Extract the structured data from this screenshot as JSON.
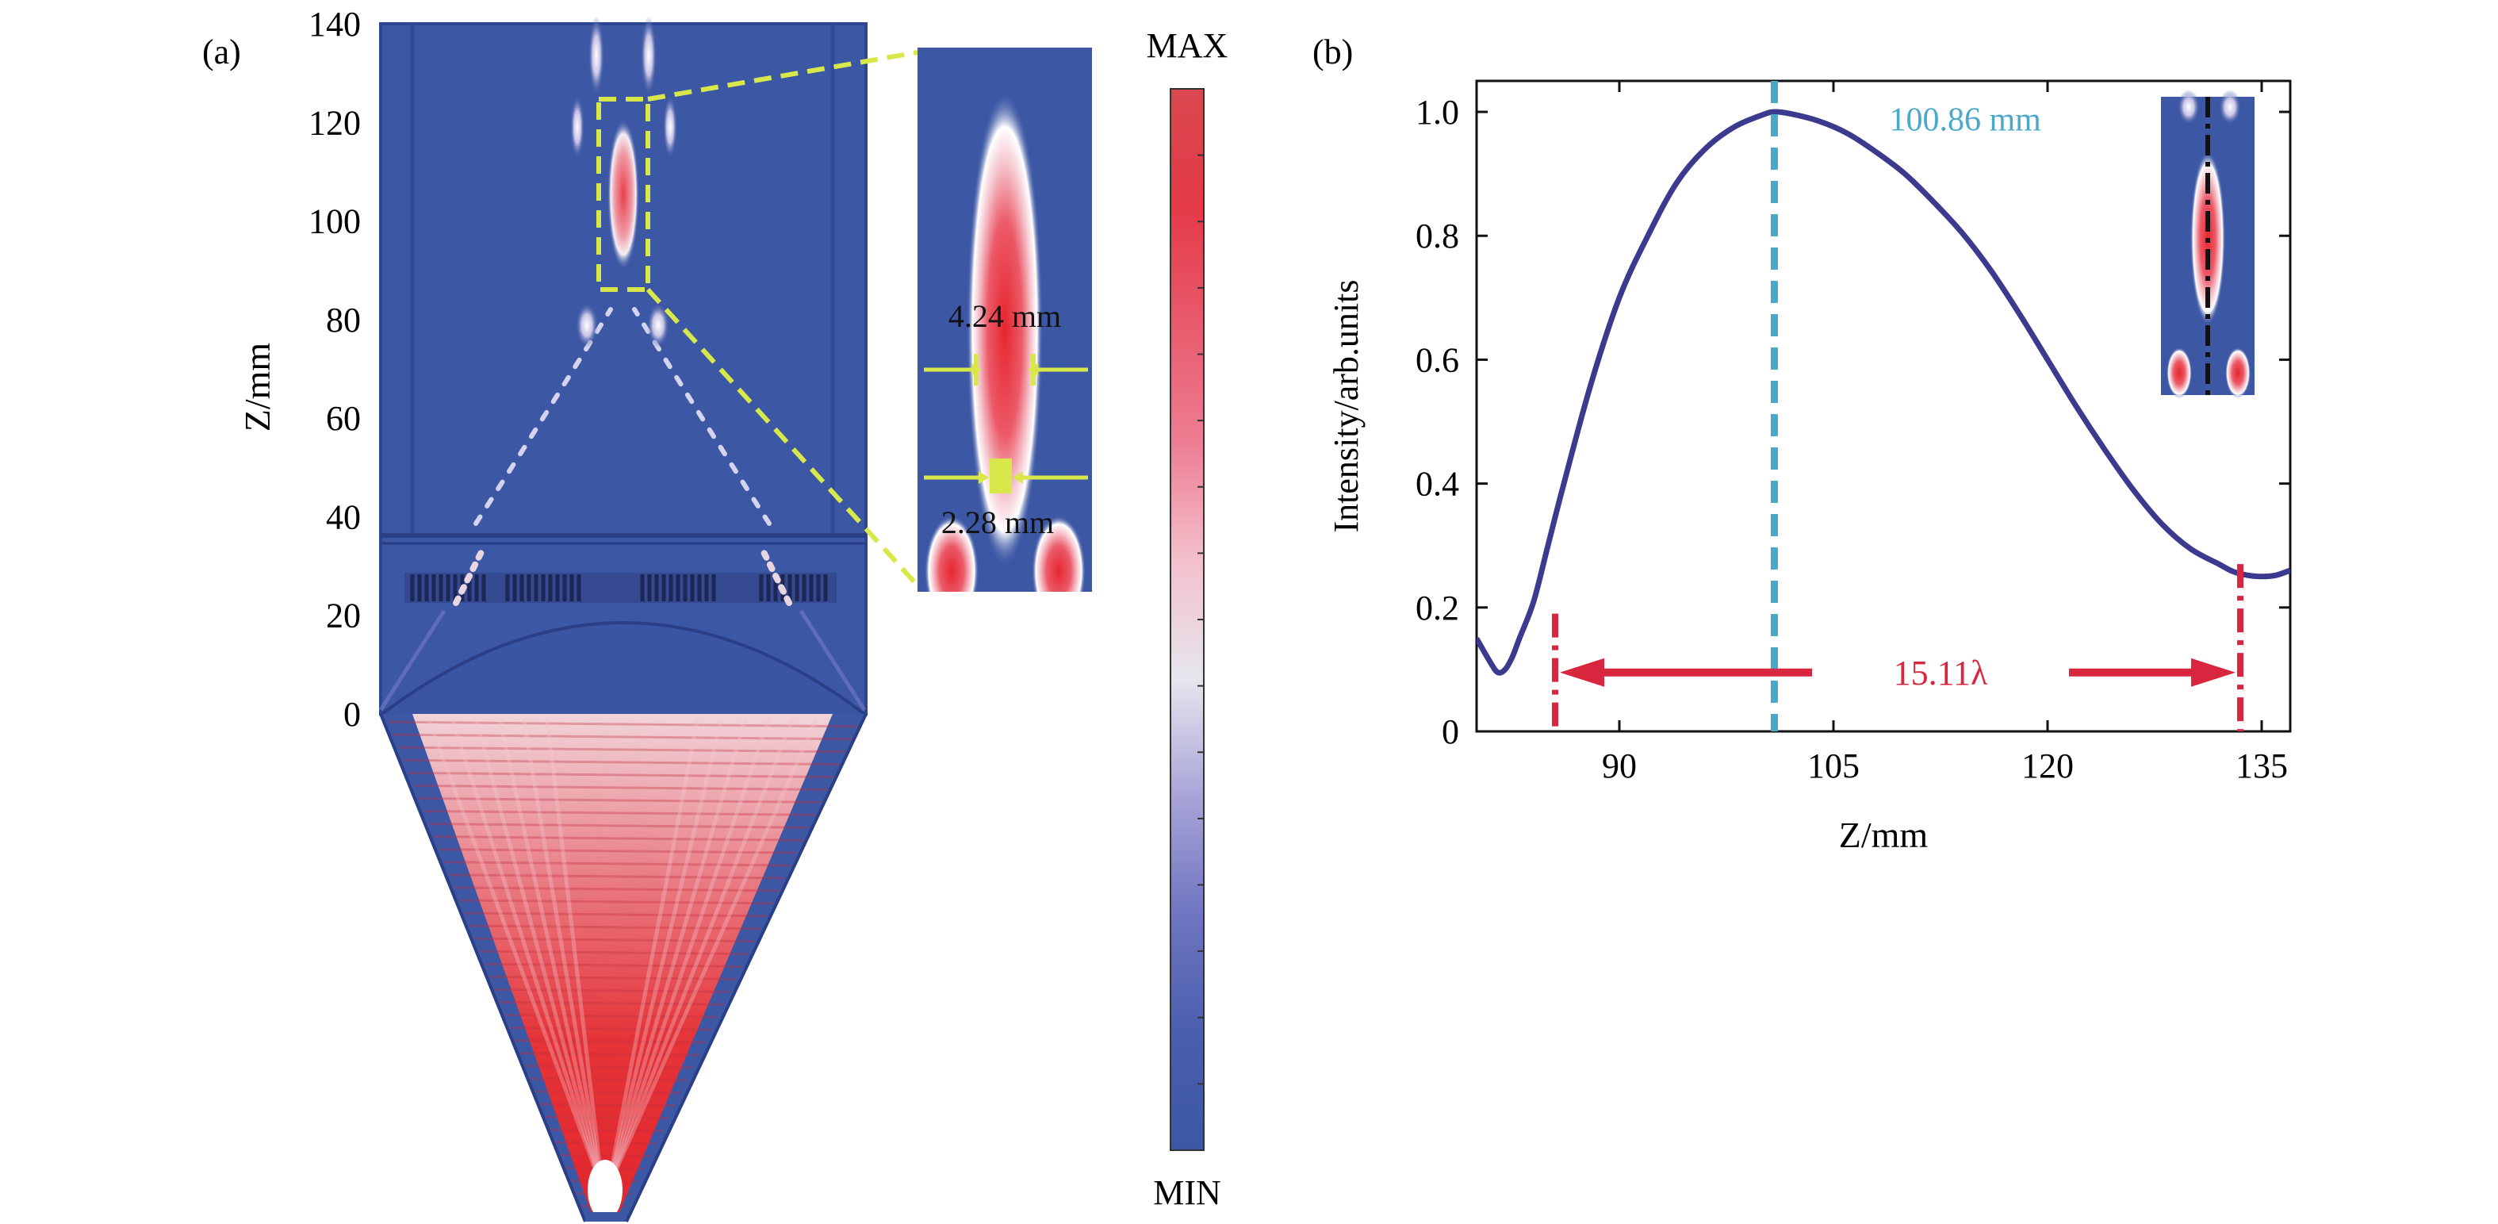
{
  "panel_a": {
    "label": "(a)",
    "ylabel": "Z/mm",
    "yticks": [
      140,
      120,
      100,
      80,
      60,
      40,
      20,
      0
    ],
    "inset": {
      "dim_upper": "4.24 mm",
      "dim_lower": "2.28 mm"
    },
    "colorbar": {
      "max_label": "MAX",
      "min_label": "MIN",
      "colors": [
        "#3c57a4",
        "#4a5fae",
        "#6f75c1",
        "#a8a4d8",
        "#e6e6ee",
        "#f3c0cc",
        "#ee7d93",
        "#e85a6c",
        "#e53a48",
        "#d9484e"
      ]
    }
  },
  "panel_b": {
    "label": "(b)",
    "peak_label": "100.86 mm",
    "span_label": "15.11λ",
    "colors": {
      "curve": "#3b3a8f",
      "peak_line": "#4aa9c9",
      "span": "#d7263d"
    }
  },
  "chart_data": [
    {
      "type": "heatmap",
      "title": "",
      "ylabel": "Z/mm",
      "ylim": [
        0,
        140
      ],
      "yticks": [
        0,
        20,
        40,
        60,
        80,
        100,
        120,
        140
      ],
      "colorbar": [
        "MIN",
        "MAX"
      ],
      "annotations": [
        "4.24 mm",
        "2.28 mm"
      ]
    },
    {
      "type": "line",
      "title": "",
      "xlabel": "Z/mm",
      "ylabel": "Intensity/arb.units",
      "xlim": [
        80,
        137
      ],
      "ylim": [
        0,
        1.05
      ],
      "xticks": [
        90,
        105,
        120,
        135
      ],
      "yticks": [
        0,
        0.2,
        0.4,
        0.6,
        0.8,
        1.0
      ],
      "series": [
        {
          "x": [
            80,
            81,
            81.5,
            82,
            82.5,
            83,
            84,
            85,
            86,
            88,
            90,
            92,
            94,
            96,
            98,
            100,
            100.86,
            102,
            104,
            106,
            108,
            110,
            112,
            114,
            116,
            118,
            120,
            122,
            124,
            126,
            128,
            130,
            132,
            133,
            134,
            135,
            136,
            137
          ],
          "y": [
            0.15,
            0.11,
            0.095,
            0.1,
            0.12,
            0.15,
            0.21,
            0.3,
            0.39,
            0.56,
            0.7,
            0.8,
            0.885,
            0.94,
            0.975,
            0.995,
            1.0,
            0.997,
            0.985,
            0.965,
            0.935,
            0.9,
            0.855,
            0.805,
            0.745,
            0.675,
            0.6,
            0.525,
            0.455,
            0.39,
            0.335,
            0.295,
            0.27,
            0.258,
            0.252,
            0.25,
            0.252,
            0.26
          ]
        }
      ],
      "annotations": [
        {
          "text": "100.86 mm",
          "x": 100.86
        },
        {
          "text": "15.11λ",
          "from": 85.5,
          "to": 133.5
        }
      ]
    }
  ]
}
